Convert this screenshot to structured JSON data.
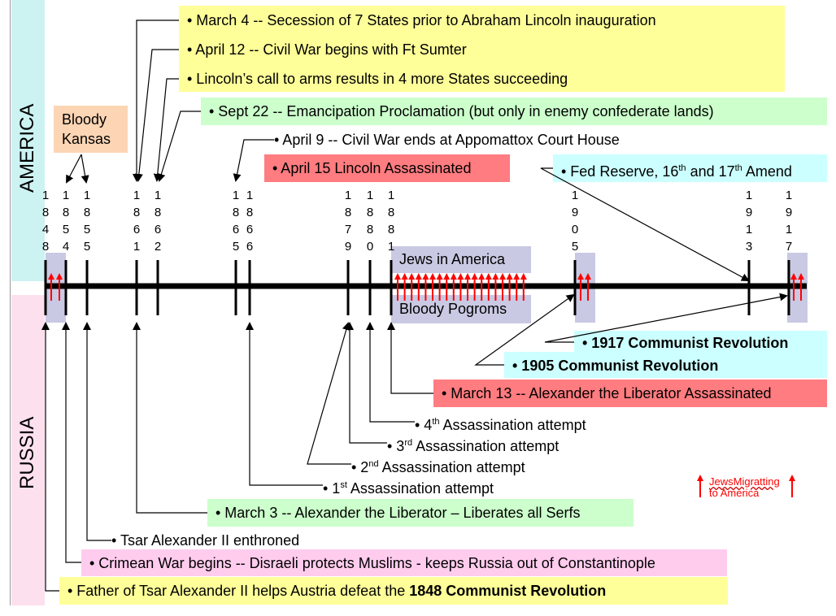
{
  "sections": {
    "america": "AMERICA",
    "russia": "RUSSIA"
  },
  "colors": {
    "yellow": "#ffff99",
    "green": "#ccffcc",
    "red": "#ff7c80",
    "cyan": "#ccffff",
    "peach": "#fcd5b4",
    "pink": "#ffccee",
    "lavender": "#ccccff",
    "america_band": "#ccf2f2",
    "russia_band": "#fde0ee",
    "migration_arrow": "#ff0000"
  },
  "years": [
    "1848",
    "1854",
    "1855",
    "1861",
    "1862",
    "1865",
    "1866",
    "1879",
    "1880",
    "1881",
    "1905",
    "1913",
    "1917"
  ],
  "america": {
    "march4": "• March 4 -- Secession of 7 States prior to Abraham Lincoln inauguration",
    "april12": "• April 12 -- Civil War begins with Ft Sumter",
    "lincoln_call": "• Lincoln’s call to arms results in 4 more States succeeding",
    "sept22": "• Sept 22 -- Emancipation Proclamation (but only in enemy confederate lands)",
    "bloody_kansas": [
      "Bloody",
      "Kansas"
    ],
    "april9": "• April 9 -- Civil War ends at Appomattox Court House",
    "april15": "• April 15 Lincoln Assassinated",
    "fed_reserve": {
      "a": "• Fed Reserve, 16",
      "sup1": "th",
      "b": " and 17",
      "sup2": "th",
      "c": " Amend"
    }
  },
  "timeline": {
    "jews_in_america": "Jews in America",
    "bloody_pogroms": "Bloody Pogroms"
  },
  "russia": {
    "rev1917": "• 1917 Communist Revolution",
    "rev1905": "• 1905 Communist Revolution",
    "march13": "• March 13 -- Alexander the Liberator Assassinated",
    "attempt4": {
      "pre": "• 4",
      "sup": "th",
      "post": " Assassination attempt"
    },
    "attempt3": {
      "pre": "• 3",
      "sup": "rd",
      "post": " Assassination attempt"
    },
    "attempt2": {
      "pre": "• 2",
      "sup": "nd",
      "post": "  Assassination attempt"
    },
    "attempt1": {
      "pre": "• 1",
      "sup": "st",
      "post": " Assassination attempt"
    },
    "march3": "• March 3 -- Alexander the Liberator – Liberates all Serfs",
    "tsar": "• Tsar Alexander II enthroned",
    "crimean": "• Crimean War begins -- Disraeli protects Muslims -  keeps Russia out of Constantinople",
    "father_pre": "• Father of Tsar Alexander II helps Austria defeat the ",
    "father_bold": "1848 Communist Revolution"
  },
  "legend": {
    "line1": "JewsMigratting",
    "line2": "to America"
  }
}
